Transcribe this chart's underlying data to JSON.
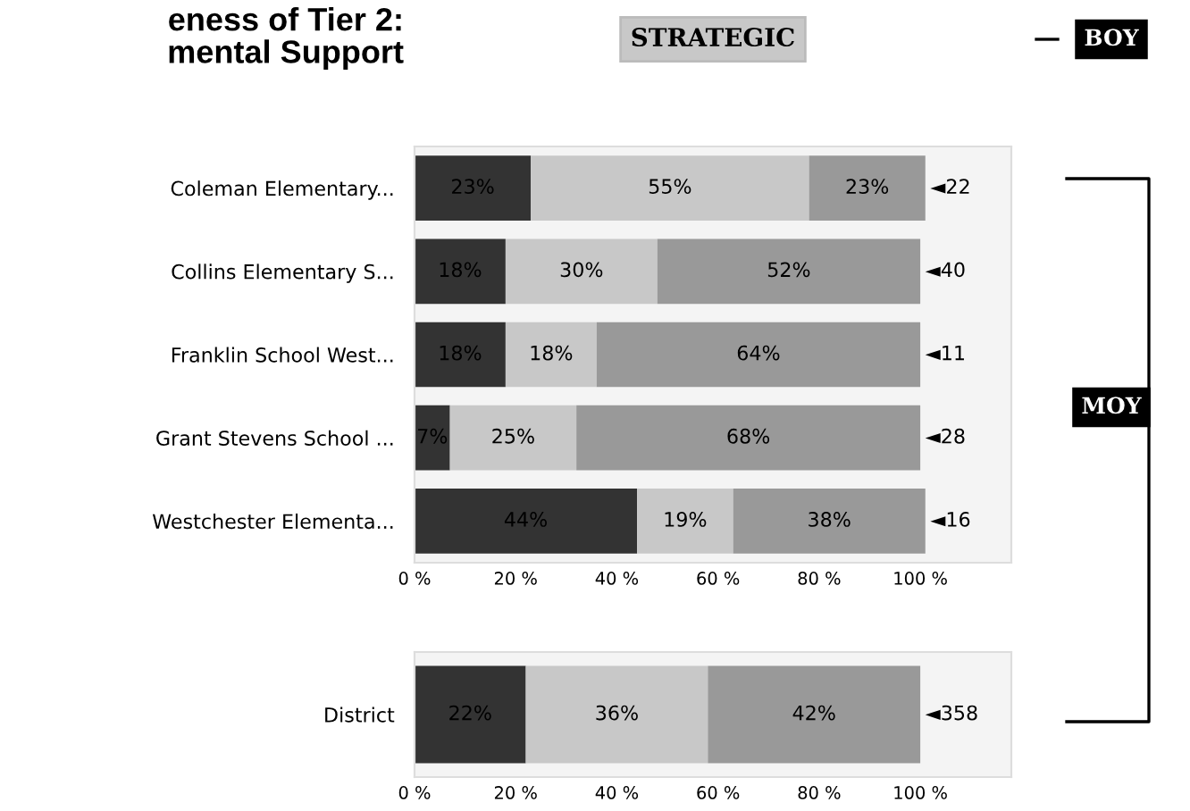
{
  "chart_data": [
    {
      "type": "bar",
      "title": "eness of Tier 2:\nmental Support",
      "subtitle": "STRATEGIC",
      "orientation": "horizontal",
      "stacked": true,
      "categories": [
        "Coleman Elementary...",
        "Collins Elementary S...",
        "Franklin School West...",
        "Grant Stevens School ...",
        "Westchester Elementa..."
      ],
      "series": [
        {
          "color": "#333333",
          "values": [
            23,
            18,
            18,
            7,
            44
          ],
          "value_labels": [
            "23%",
            "18%",
            "18%",
            "7%",
            "44%"
          ]
        },
        {
          "color": "#c8c8c8",
          "values": [
            55,
            30,
            18,
            25,
            19
          ],
          "value_labels": [
            "55%",
            "30%",
            "18%",
            "25%",
            "19%"
          ]
        },
        {
          "color": "#999999",
          "values": [
            23,
            52,
            64,
            68,
            38
          ],
          "value_labels": [
            "23%",
            "52%",
            "64%",
            "68%",
            "38%"
          ]
        }
      ],
      "xlim": [
        0,
        118
      ],
      "xticks": [
        {
          "value": 0,
          "label": "0 %"
        },
        {
          "value": 20,
          "label": "20 %"
        },
        {
          "value": 40,
          "label": "40 %"
        },
        {
          "value": 60,
          "label": "60 %"
        },
        {
          "value": 80,
          "label": "80 %"
        },
        {
          "value": 100,
          "label": "100 %"
        }
      ],
      "annotations": [
        "◄22",
        "◄40",
        "◄11",
        "◄28",
        "◄16",
        "BOY",
        "MOY"
      ]
    },
    {
      "type": "bar",
      "orientation": "horizontal",
      "stacked": true,
      "categories": [
        "District"
      ],
      "series": [
        {
          "color": "#333333",
          "values": [
            22
          ],
          "value_labels": [
            "22%"
          ]
        },
        {
          "color": "#c8c8c8",
          "values": [
            36
          ],
          "value_labels": [
            "36%"
          ]
        },
        {
          "color": "#999999",
          "values": [
            42
          ],
          "value_labels": [
            "42%"
          ]
        }
      ],
      "xlim": [
        0,
        118
      ],
      "xticks": [
        {
          "value": 0,
          "label": "0 %"
        },
        {
          "value": 20,
          "label": "20 %"
        },
        {
          "value": 40,
          "label": "40 %"
        },
        {
          "value": 60,
          "label": "60 %"
        },
        {
          "value": 80,
          "label": "80 %"
        },
        {
          "value": 100,
          "label": "100 %"
        }
      ],
      "annotations": [
        "◄358"
      ]
    }
  ]
}
